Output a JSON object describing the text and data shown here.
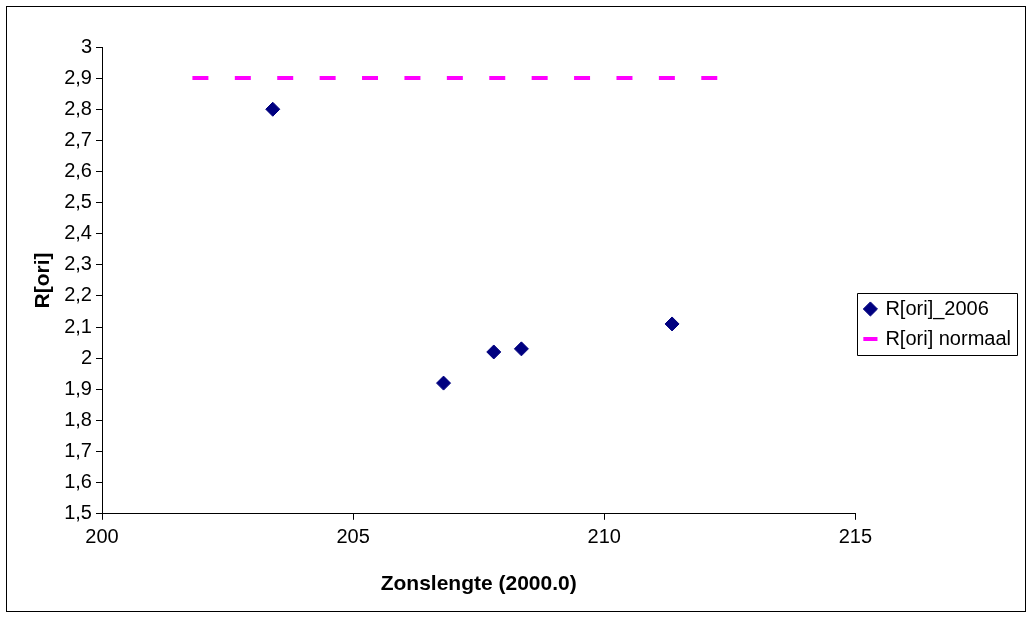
{
  "chart_data": {
    "type": "scatter",
    "xlabel": "Zonslengte (2000.0)",
    "ylabel": "R[ori]",
    "series": [
      {
        "name": "R[ori]_2006",
        "color": "#000080",
        "marker": "diamond",
        "x": [
          203.4,
          206.8,
          207.8,
          208.35,
          211.35
        ],
        "values": [
          2.8,
          1.92,
          2.02,
          2.03,
          2.11
        ]
      },
      {
        "name": "R[ori] normaal",
        "type": "line",
        "line_style": "dashed",
        "color": "#ff00ff",
        "x": [
          201.8,
          212.25
        ],
        "values": [
          2.9,
          2.9
        ]
      }
    ],
    "xlim": [
      200,
      215
    ],
    "xticks": [
      200,
      205,
      210,
      215
    ],
    "ylim": [
      1.5,
      3
    ],
    "yticks": [
      {
        "value": 1.5,
        "label": "1,5"
      },
      {
        "value": 1.6,
        "label": "1,6"
      },
      {
        "value": 1.7,
        "label": "1,7"
      },
      {
        "value": 1.8,
        "label": "1,8"
      },
      {
        "value": 1.9,
        "label": "1,9"
      },
      {
        "value": 2,
        "label": "2"
      },
      {
        "value": 2.1,
        "label": "2,1"
      },
      {
        "value": 2.2,
        "label": "2,2"
      },
      {
        "value": 2.3,
        "label": "2,3"
      },
      {
        "value": 2.4,
        "label": "2,4"
      },
      {
        "value": 2.5,
        "label": "2,5"
      },
      {
        "value": 2.6,
        "label": "2,6"
      },
      {
        "value": 2.7,
        "label": "2,7"
      },
      {
        "value": 2.8,
        "label": "2,8"
      },
      {
        "value": 2.9,
        "label": "2,9"
      },
      {
        "value": 3,
        "label": "3"
      }
    ],
    "grid": false,
    "legend": "right"
  }
}
